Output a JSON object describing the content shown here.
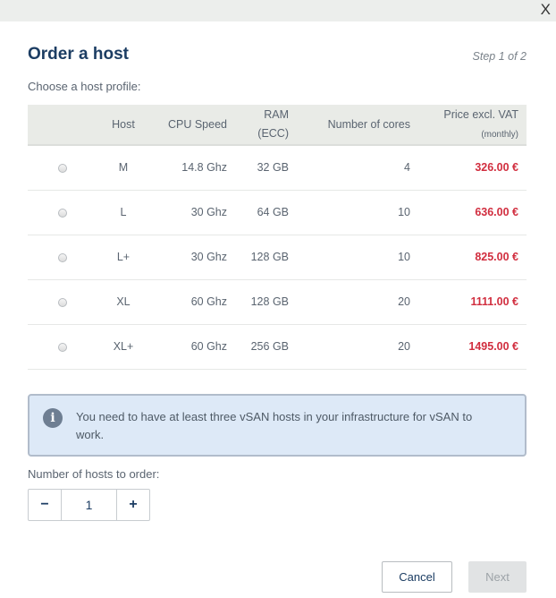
{
  "dialog": {
    "title": "Order a host",
    "step": "Step 1 of 2",
    "close": "X",
    "subtitle": "Choose a host profile:"
  },
  "table": {
    "headers": {
      "host": "Host",
      "cpu": "CPU Speed",
      "ram": "RAM",
      "ram_sub": "(ECC)",
      "cores": "Number of cores",
      "price": "Price excl. VAT",
      "price_sub": "(monthly)"
    },
    "rows": [
      {
        "host": "M",
        "cpu": "14.8 Ghz",
        "ram": "32 GB",
        "cores": "4",
        "price": "326.00 €"
      },
      {
        "host": "L",
        "cpu": "30 Ghz",
        "ram": "64 GB",
        "cores": "10",
        "price": "636.00 €"
      },
      {
        "host": "L+",
        "cpu": "30 Ghz",
        "ram": "128 GB",
        "cores": "10",
        "price": "825.00 €"
      },
      {
        "host": "XL",
        "cpu": "60 Ghz",
        "ram": "128 GB",
        "cores": "20",
        "price": "1111.00 €"
      },
      {
        "host": "XL+",
        "cpu": "60 Ghz",
        "ram": "256 GB",
        "cores": "20",
        "price": "1495.00 €"
      }
    ]
  },
  "info": {
    "icon": "info-icon",
    "text": "You need to have at least three vSAN hosts in your infrastructure for vSAN to work."
  },
  "quantity": {
    "label": "Number of hosts to order:",
    "minus": "−",
    "value": "1",
    "plus": "+"
  },
  "buttons": {
    "cancel": "Cancel",
    "next": "Next"
  },
  "colors": {
    "title": "#1c3d63",
    "price": "#d12e3f",
    "info_bg": "#dde9f7"
  }
}
